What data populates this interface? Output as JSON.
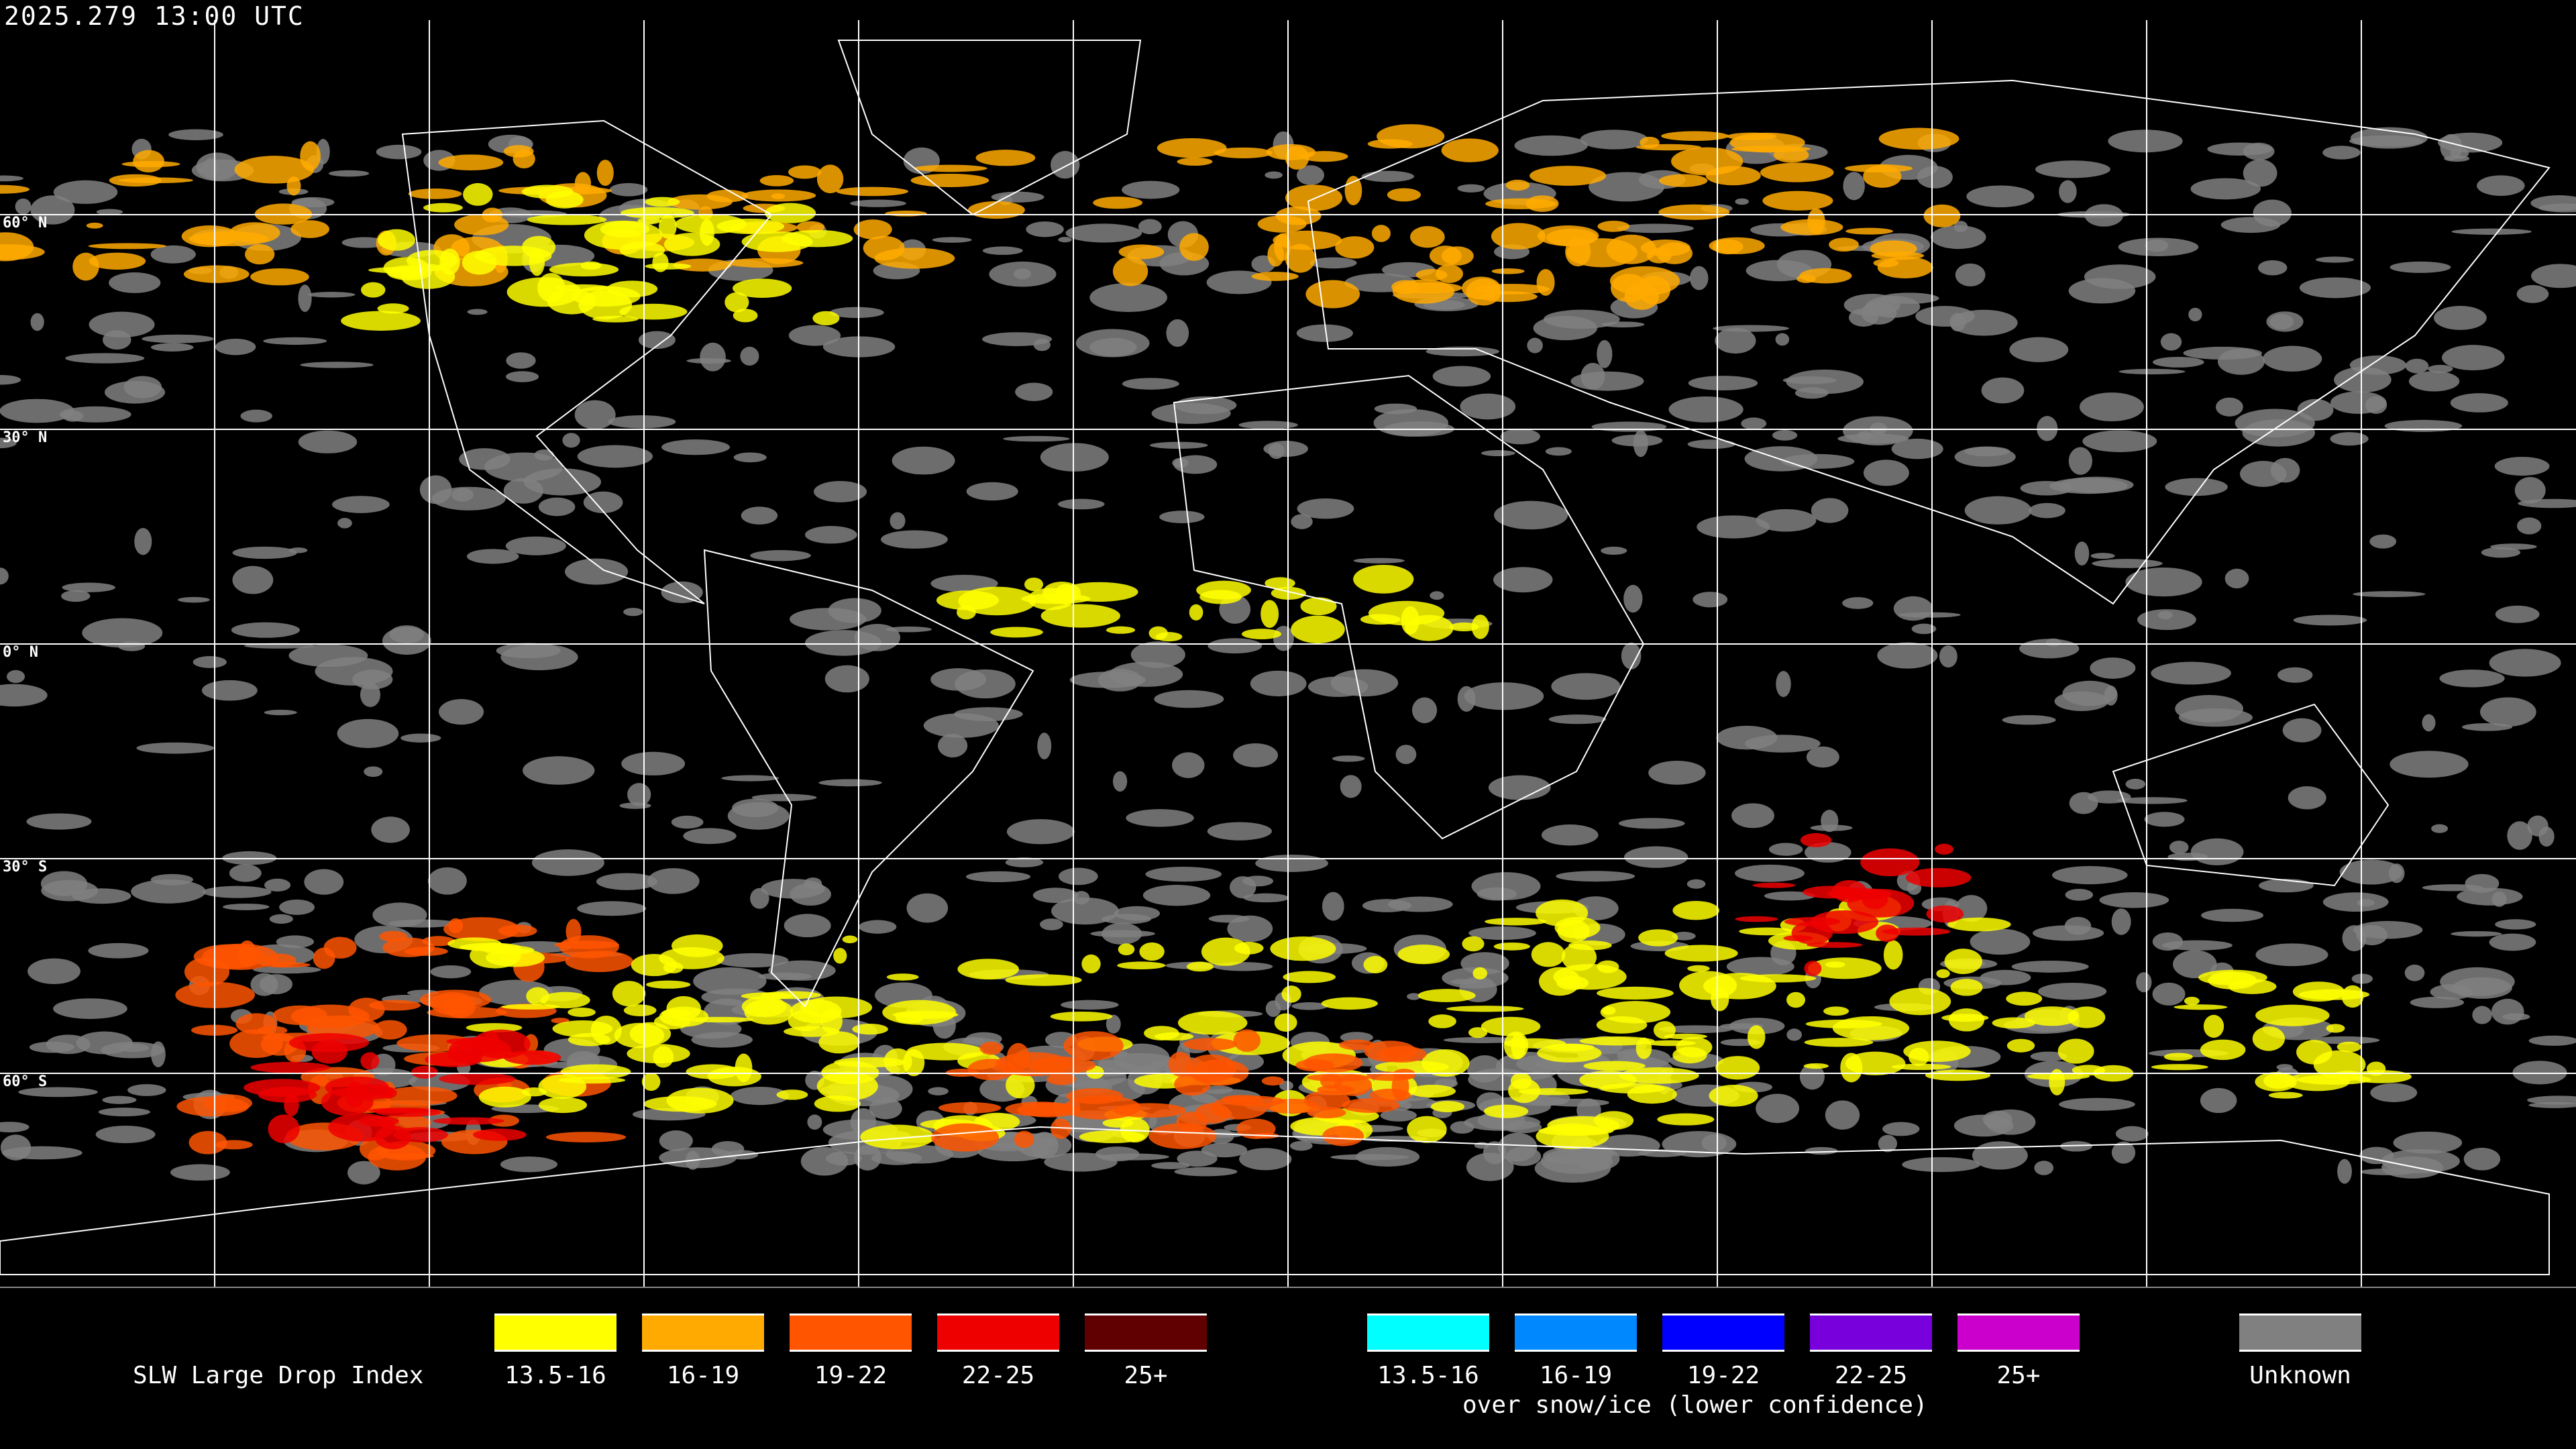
{
  "title": "2025.279 13:00 UTC",
  "latitude_labels": [
    "60° N",
    "30° N",
    "0° N",
    "30° S",
    "60° S"
  ],
  "legend": {
    "title": "SLW Large Drop Index",
    "items": [
      {
        "label": "13.5-16",
        "color": "#ffff00"
      },
      {
        "label": "16-19",
        "color": "#ffaa00"
      },
      {
        "label": "19-22",
        "color": "#ff5500"
      },
      {
        "label": "22-25",
        "color": "#ee0000"
      },
      {
        "label": "25+",
        "color": "#600000"
      }
    ],
    "snow_items": [
      {
        "label": "13.5-16",
        "color": "#00ffff"
      },
      {
        "label": "16-19",
        "color": "#0088ff"
      },
      {
        "label": "19-22",
        "color": "#0000ff"
      },
      {
        "label": "22-25",
        "color": "#7700dd"
      },
      {
        "label": "25+",
        "color": "#cc00cc"
      }
    ],
    "snow_caption": "over snow/ice (lower confidence)",
    "unknown": {
      "label": "Unknown",
      "color": "#808080"
    }
  }
}
